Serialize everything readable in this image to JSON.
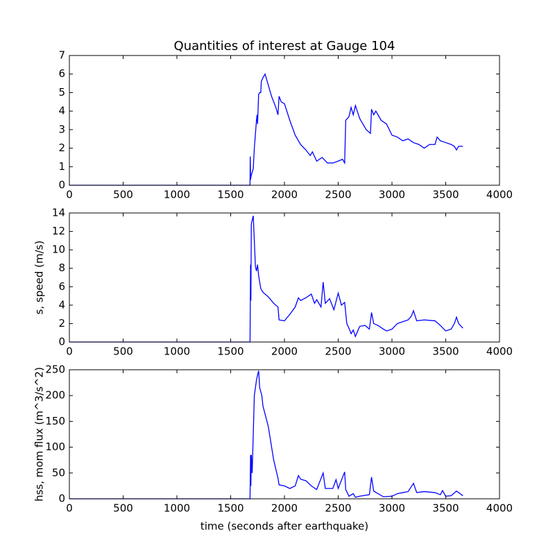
{
  "chart_data": [
    {
      "type": "line",
      "title": "Quantities of interest at Gauge 104",
      "color": "#0000ff",
      "x": [
        0,
        1680,
        1682,
        1685,
        1690,
        1700,
        1710,
        1720,
        1740,
        1745,
        1750,
        1760,
        1770,
        1780,
        1785,
        1800,
        1820,
        1840,
        1880,
        1920,
        1940,
        1950,
        1970,
        2000,
        2050,
        2100,
        2150,
        2200,
        2240,
        2260,
        2300,
        2350,
        2400,
        2450,
        2500,
        2540,
        2560,
        2570,
        2600,
        2620,
        2640,
        2660,
        2700,
        2760,
        2800,
        2810,
        2830,
        2850,
        2900,
        2950,
        3000,
        3050,
        3100,
        3150,
        3200,
        3250,
        3300,
        3350,
        3400,
        3420,
        3450,
        3500,
        3550,
        3580,
        3600,
        3620,
        3660
      ],
      "values": [
        0,
        0,
        1.55,
        0.3,
        0.5,
        0.7,
        0.9,
        2.0,
        3.5,
        3.8,
        3.3,
        4.9,
        5.0,
        5.0,
        5.6,
        5.8,
        6.0,
        5.6,
        4.8,
        4.2,
        3.8,
        4.8,
        4.5,
        4.4,
        3.5,
        2.7,
        2.2,
        1.9,
        1.6,
        1.8,
        1.3,
        1.5,
        1.2,
        1.2,
        1.3,
        1.4,
        1.2,
        3.5,
        3.7,
        4.2,
        3.8,
        4.3,
        3.6,
        3.0,
        2.8,
        4.1,
        3.8,
        4.0,
        3.5,
        3.3,
        2.7,
        2.6,
        2.4,
        2.5,
        2.3,
        2.2,
        2.0,
        2.2,
        2.2,
        2.6,
        2.4,
        2.3,
        2.2,
        2.1,
        1.9,
        2.1,
        2.1
      ],
      "xlim": [
        0,
        4000
      ],
      "xticks": [
        0,
        500,
        1000,
        1500,
        2000,
        2500,
        3000,
        3500,
        4000
      ],
      "ylim": [
        0,
        7
      ],
      "yticks": [
        0,
        1,
        2,
        3,
        4,
        5,
        6,
        7
      ]
    },
    {
      "type": "line",
      "ylabel": "s, speed (m/s)",
      "color": "#0000ff",
      "x": [
        0,
        1680,
        1685,
        1688,
        1692,
        1700,
        1710,
        1720,
        1730,
        1740,
        1750,
        1760,
        1780,
        1800,
        1850,
        1900,
        1940,
        1950,
        2000,
        2050,
        2100,
        2130,
        2150,
        2200,
        2250,
        2280,
        2300,
        2340,
        2360,
        2380,
        2420,
        2460,
        2500,
        2530,
        2560,
        2580,
        2600,
        2620,
        2640,
        2660,
        2700,
        2750,
        2790,
        2810,
        2830,
        2870,
        2920,
        2950,
        3000,
        3050,
        3100,
        3150,
        3180,
        3200,
        3230,
        3300,
        3400,
        3450,
        3500,
        3550,
        3580,
        3600,
        3620,
        3660
      ],
      "values": [
        0,
        0,
        8.4,
        4.5,
        12.8,
        13.2,
        13.7,
        11,
        8.2,
        7.7,
        8.4,
        7.2,
        5.8,
        5.4,
        4.9,
        4.2,
        3.8,
        2.4,
        2.3,
        3.0,
        3.8,
        4.8,
        4.5,
        4.8,
        5.2,
        4.2,
        4.6,
        3.8,
        6.5,
        4.2,
        4.7,
        3.5,
        5.3,
        4.0,
        4.3,
        2.0,
        1.5,
        0.9,
        1.3,
        0.6,
        1.7,
        1.8,
        1.4,
        3.2,
        2.0,
        1.8,
        1.4,
        1.2,
        1.4,
        2.0,
        2.2,
        2.4,
        2.8,
        3.4,
        2.3,
        2.4,
        2.3,
        1.8,
        1.2,
        1.4,
        2.0,
        2.7,
        2.0,
        1.5
      ],
      "xlim": [
        0,
        4000
      ],
      "xticks": [
        0,
        500,
        1000,
        1500,
        2000,
        2500,
        3000,
        3500,
        4000
      ],
      "ylim": [
        0,
        14
      ],
      "yticks": [
        0,
        2,
        4,
        6,
        8,
        10,
        12,
        14
      ]
    },
    {
      "type": "line",
      "ylabel": "hss, mom flux (m^3/s^2)",
      "xlabel": "time (seconds after earthquake)",
      "color": "#0000ff",
      "x": [
        0,
        1680,
        1685,
        1688,
        1692,
        1700,
        1720,
        1740,
        1750,
        1760,
        1770,
        1790,
        1800,
        1850,
        1900,
        1940,
        1950,
        2000,
        2050,
        2100,
        2130,
        2150,
        2200,
        2250,
        2300,
        2360,
        2380,
        2450,
        2480,
        2500,
        2560,
        2570,
        2600,
        2640,
        2660,
        2700,
        2790,
        2810,
        2830,
        2870,
        2920,
        3000,
        3050,
        3100,
        3150,
        3200,
        3230,
        3300,
        3400,
        3450,
        3470,
        3500,
        3550,
        3600,
        3660
      ],
      "values": [
        0,
        0,
        85,
        25,
        85,
        50,
        200,
        230,
        240,
        248,
        215,
        200,
        180,
        140,
        75,
        40,
        27,
        25,
        20,
        25,
        45,
        38,
        35,
        25,
        18,
        50,
        20,
        20,
        37,
        20,
        52,
        18,
        5,
        10,
        3,
        5,
        8,
        42,
        15,
        10,
        4,
        5,
        10,
        12,
        14,
        30,
        12,
        14,
        12,
        8,
        16,
        5,
        6,
        15,
        6
      ],
      "xlim": [
        0,
        4000
      ],
      "xticks": [
        0,
        500,
        1000,
        1500,
        2000,
        2500,
        3000,
        3500,
        4000
      ],
      "ylim": [
        0,
        250
      ],
      "yticks": [
        0,
        50,
        100,
        150,
        200,
        250
      ]
    }
  ]
}
